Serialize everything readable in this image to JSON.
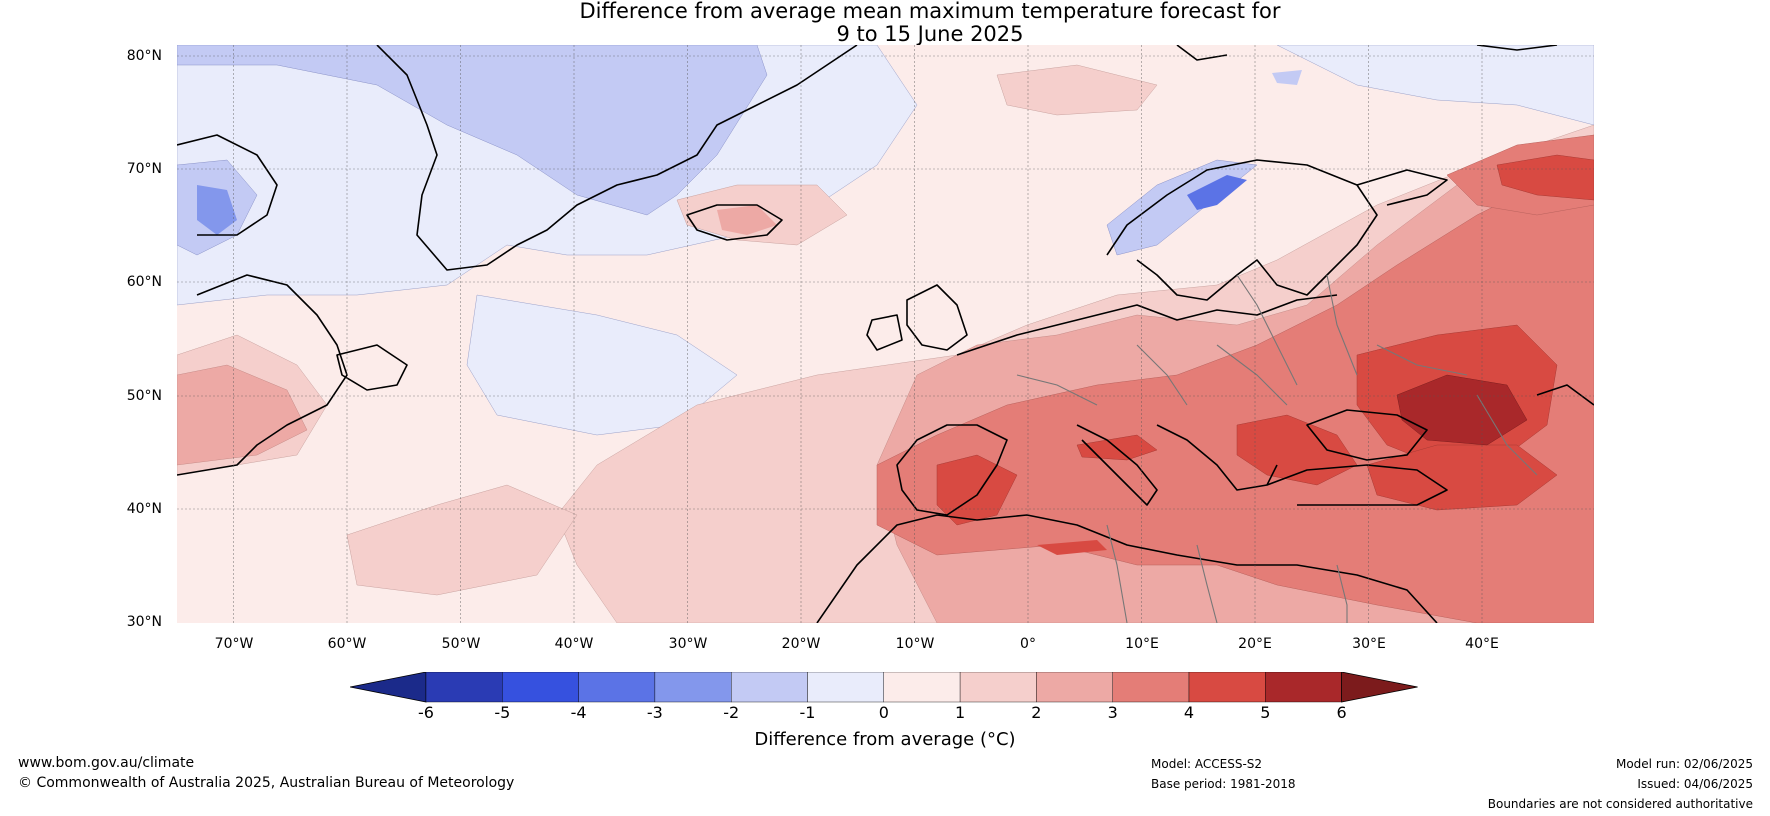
{
  "title_line1": "Difference from average mean maximum temperature forecast for",
  "title_line2": "9 to 15 June 2025",
  "lat_labels": [
    "80°N",
    "70°N",
    "60°N",
    "50°N",
    "40°N",
    "30°N"
  ],
  "lon_labels": [
    "70°W",
    "60°W",
    "50°W",
    "40°W",
    "30°W",
    "20°W",
    "10°W",
    "0°",
    "10°E",
    "20°E",
    "30°E",
    "40°E"
  ],
  "colorbar": {
    "label": "Difference from average (°C)",
    "ticks": [
      "-6",
      "-5",
      "-4",
      "-3",
      "-2",
      "-1",
      "0",
      "1",
      "2",
      "3",
      "4",
      "5",
      "6"
    ],
    "colors": [
      "#1b2a8a",
      "#2a3bb4",
      "#3651df",
      "#5b73e6",
      "#8397ec",
      "#c3caf4",
      "#e9ecfb",
      "#fcecea",
      "#f5cfcc",
      "#eda9a5",
      "#e47d77",
      "#d84a42",
      "#a9282a",
      "#7c1b1c"
    ]
  },
  "footer": {
    "website": "www.bom.gov.au/climate",
    "copyright": "© Commonwealth of Australia 2025, Australian Bureau of Meteorology",
    "model": "Model: ACCESS-S2",
    "base_period": "Base period: 1981-2018",
    "model_run": "Model run: 02/06/2025",
    "issued": "Issued: 04/06/2025",
    "disclaimer": "Boundaries are not considered authoritative"
  }
}
